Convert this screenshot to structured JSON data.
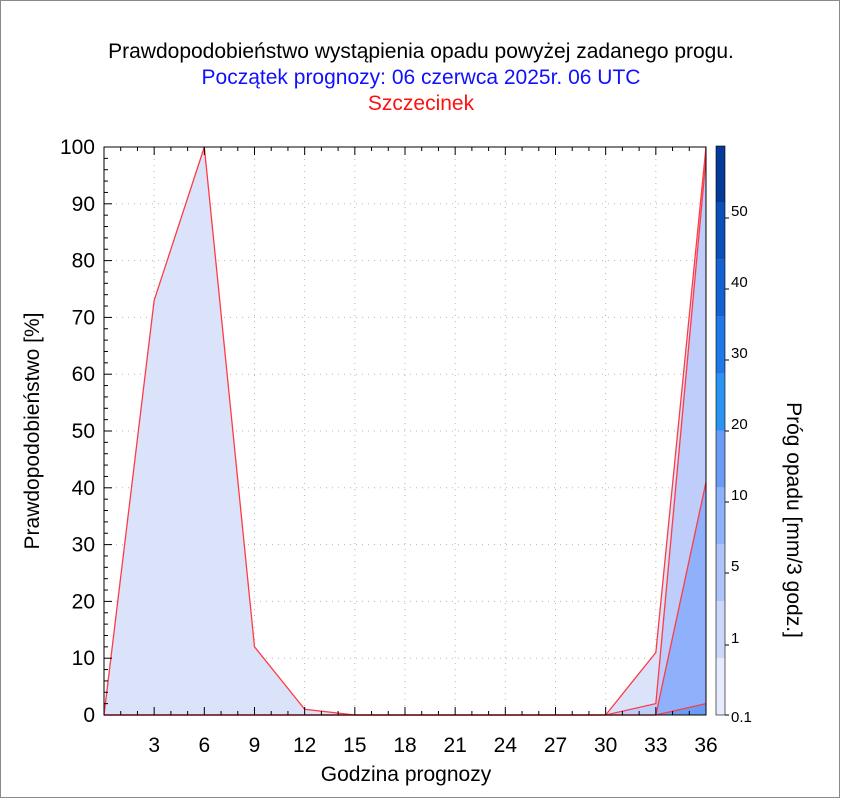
{
  "chart_data": {
    "type": "area",
    "title": "Prawdopodobieństwo wystąpienia opadu powyżej zadanego progu.",
    "subtitle": "Początek prognozy: 06 czerwca 2025r. 06 UTC",
    "location": "Szczecinek",
    "xlabel": "Godzina prognozy",
    "ylabel": "Prawdopodobieństwo [%]",
    "xlim": [
      0,
      36
    ],
    "ylim": [
      0,
      100
    ],
    "x_ticks": [
      3,
      6,
      9,
      12,
      15,
      18,
      21,
      24,
      27,
      30,
      33,
      36
    ],
    "y_ticks": [
      0,
      10,
      20,
      30,
      40,
      50,
      60,
      70,
      80,
      90,
      100
    ],
    "grid": true,
    "x": [
      0,
      3,
      6,
      9,
      12,
      15,
      18,
      21,
      24,
      27,
      30,
      33,
      36
    ],
    "series": [
      {
        "name": "0.1",
        "color": "#dbe3fb",
        "values": [
          0,
          73,
          100,
          12,
          1,
          0,
          0,
          0,
          0,
          0,
          0,
          11,
          100
        ]
      },
      {
        "name": "1",
        "color": "#bfcdfa",
        "values": [
          0,
          0,
          0,
          0,
          0,
          0,
          0,
          0,
          0,
          0,
          0,
          2,
          98
        ]
      },
      {
        "name": "5",
        "color": "#8fb0fb",
        "values": [
          0,
          0,
          0,
          0,
          0,
          0,
          0,
          0,
          0,
          0,
          0,
          0,
          41
        ]
      },
      {
        "name": "10",
        "color": "#6a9cf5",
        "values": [
          0,
          0,
          0,
          0,
          0,
          0,
          0,
          0,
          0,
          0,
          0,
          0,
          2
        ]
      }
    ],
    "colorbar": {
      "label": "Próg opadu [mm/3 godz.]",
      "tick_labels": [
        "0.1",
        "1",
        "5",
        "10",
        "20",
        "30",
        "40",
        "50"
      ],
      "colors": [
        "#e6ebfd",
        "#ccd8fb",
        "#aec3fa",
        "#8db1fa",
        "#6a9cf5",
        "#2b93f2",
        "#1e78e8",
        "#1461d3",
        "#0b4fb8",
        "#053a99"
      ]
    }
  }
}
